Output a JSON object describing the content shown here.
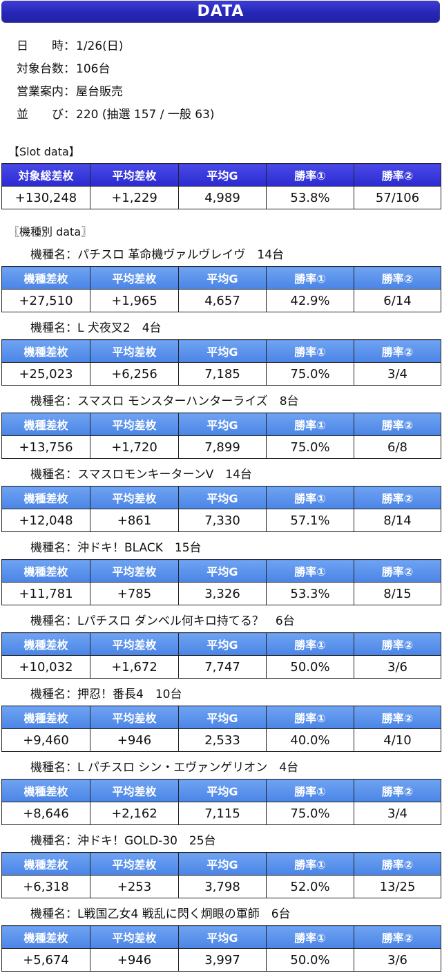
{
  "header": {
    "title": "DATA"
  },
  "info": [
    {
      "label": "日　　時：",
      "value": "1/26(日)"
    },
    {
      "label": "対象台数：",
      "value": "106台"
    },
    {
      "label": "営業案内：",
      "value": "屋台販売"
    },
    {
      "label": "並　　び：",
      "value": "220 (抽選 157 / 一般 63)"
    }
  ],
  "slot_section": {
    "label": "【Slot data】",
    "headers": [
      "対象総差枚",
      "平均差枚",
      "平均G",
      "勝率①",
      "勝率②"
    ],
    "values": [
      "+130,248",
      "+1,229",
      "4,989",
      "53.8%",
      "57/106"
    ]
  },
  "model_section": {
    "label": "〖機種別 data〗",
    "name_prefix": "機種名：",
    "headers": [
      "機種差枚",
      "平均差枚",
      "平均G",
      "勝率①",
      "勝率②"
    ],
    "models": [
      {
        "name": "パチスロ 革命機ヴァルヴレイヴ　14台",
        "values": [
          "+27,510",
          "+1,965",
          "4,657",
          "42.9%",
          "6/14"
        ]
      },
      {
        "name": "L 犬夜叉2　4台",
        "values": [
          "+25,023",
          "+6,256",
          "7,185",
          "75.0%",
          "3/4"
        ]
      },
      {
        "name": "スマスロ モンスターハンターライズ　8台",
        "values": [
          "+13,756",
          "+1,720",
          "7,899",
          "75.0%",
          "6/8"
        ]
      },
      {
        "name": "スマスロモンキーターンV　14台",
        "values": [
          "+12,048",
          "+861",
          "7,330",
          "57.1%",
          "8/14"
        ]
      },
      {
        "name": "沖ドキ！BLACK　15台",
        "values": [
          "+11,781",
          "+785",
          "3,326",
          "53.3%",
          "8/15"
        ]
      },
      {
        "name": "Lパチスロ ダンベル何キロ持てる？　6台",
        "values": [
          "+10,032",
          "+1,672",
          "7,747",
          "50.0%",
          "3/6"
        ]
      },
      {
        "name": "押忍！番長4　10台",
        "values": [
          "+9,460",
          "+946",
          "2,533",
          "40.0%",
          "4/10"
        ]
      },
      {
        "name": "L パチスロ シン・エヴァンゲリオン　4台",
        "values": [
          "+8,646",
          "+2,162",
          "7,115",
          "75.0%",
          "3/4"
        ]
      },
      {
        "name": "沖ドキ！GOLD-30　25台",
        "values": [
          "+6,318",
          "+253",
          "3,798",
          "52.0%",
          "13/25"
        ]
      },
      {
        "name": "L戦国乙女4 戦乱に閃く炯眼の軍師　6台",
        "values": [
          "+5,674",
          "+946",
          "3,997",
          "50.0%",
          "3/6"
        ]
      }
    ]
  }
}
